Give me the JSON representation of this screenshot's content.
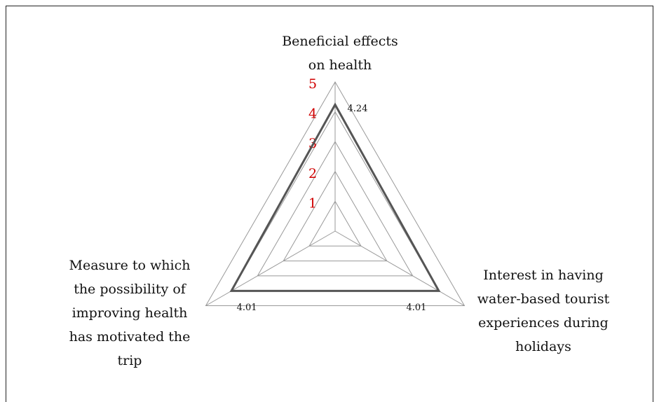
{
  "chart_data": {
    "type": "radar",
    "categories": [
      [
        "Beneficial effects",
        "on health"
      ],
      [
        "Interest in having",
        "water-based tourist",
        "experiences during",
        "holidays"
      ],
      [
        "Measure to which",
        "the possibility of",
        "improving health",
        "has motivated the",
        "trip"
      ]
    ],
    "values": [
      4.24,
      4.01,
      4.01
    ],
    "color": "#555555",
    "rlim": [
      0,
      5
    ],
    "rticks": [
      1,
      2,
      3,
      4,
      5
    ],
    "grid": true
  }
}
